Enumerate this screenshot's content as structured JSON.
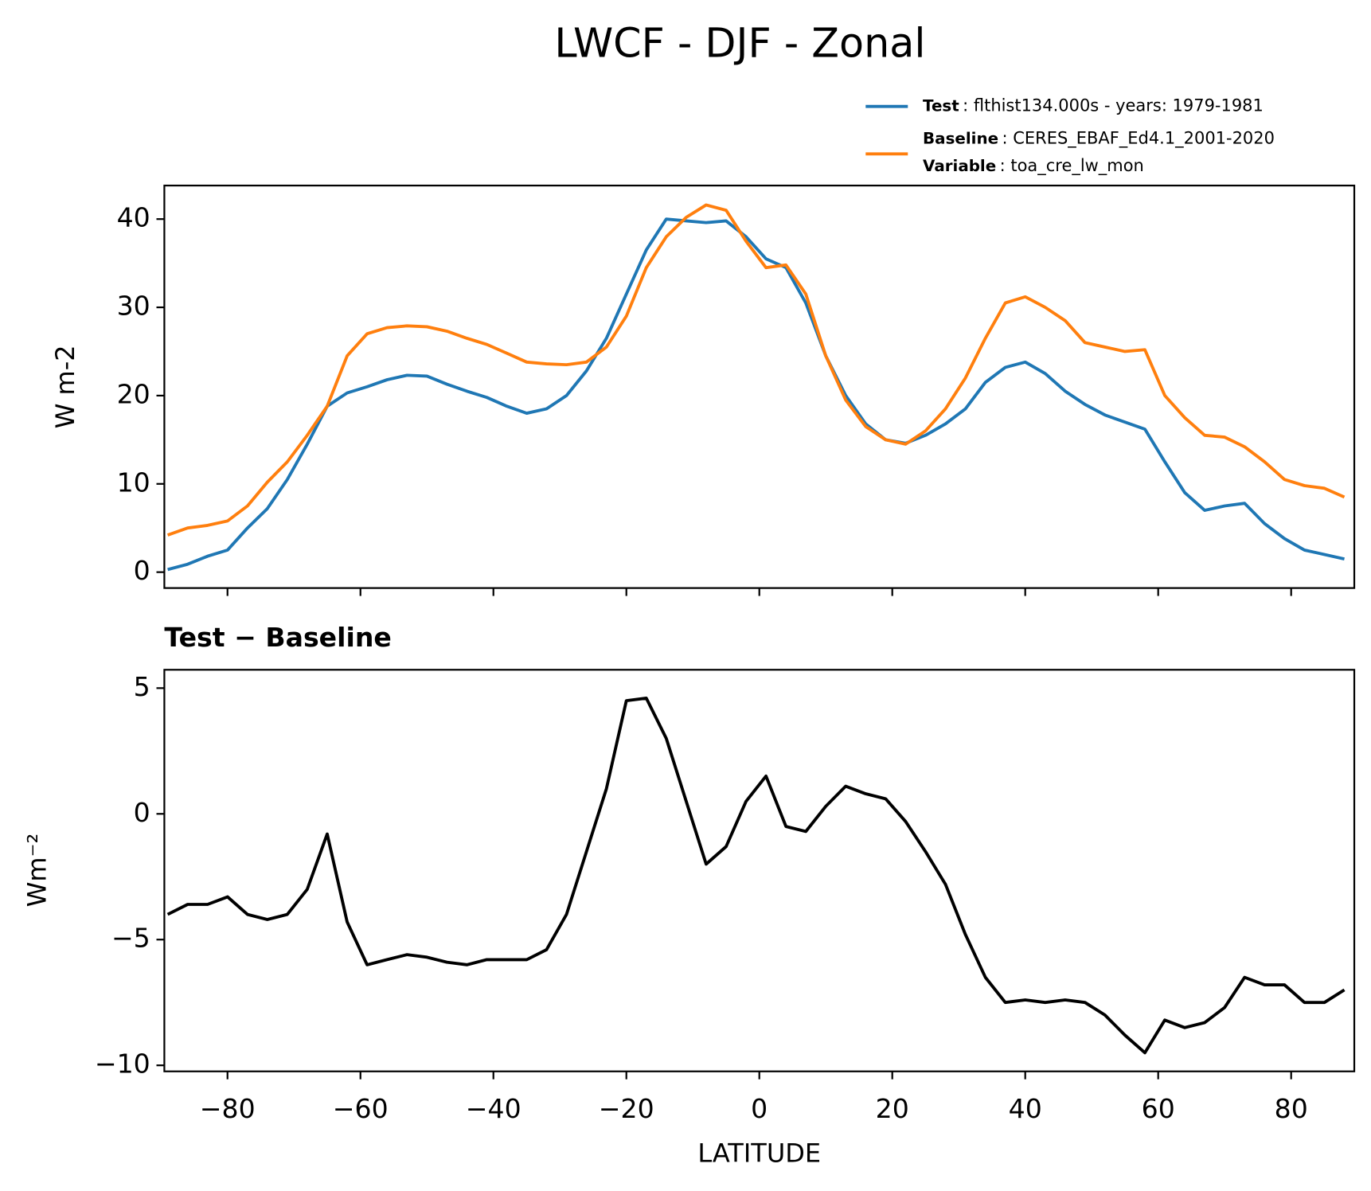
{
  "chart_data": [
    {
      "type": "line",
      "title": "LWCF - DJF - Zonal",
      "y_label": "W m-2",
      "x": [
        -89,
        -86,
        -83,
        -80,
        -77,
        -74,
        -71,
        -68,
        -65,
        -62,
        -59,
        -56,
        -53,
        -50,
        -47,
        -44,
        -41,
        -38,
        -35,
        -32,
        -29,
        -26,
        -23,
        -20,
        -17,
        -14,
        -11,
        -8,
        -5,
        -2,
        1,
        4,
        7,
        10,
        13,
        16,
        19,
        22,
        25,
        28,
        31,
        34,
        37,
        40,
        43,
        46,
        49,
        52,
        55,
        58,
        61,
        64,
        67,
        70,
        73,
        76,
        79,
        82,
        85,
        88
      ],
      "series": [
        {
          "name": "Test",
          "label": ": flthist134.000s - years: 1979-1981",
          "color": "#1f77b4",
          "values": [
            0.3,
            0.9,
            1.8,
            2.5,
            5.0,
            7.2,
            10.5,
            14.5,
            18.8,
            20.3,
            21.0,
            21.8,
            22.3,
            22.2,
            21.3,
            20.5,
            19.8,
            18.8,
            18.0,
            18.5,
            20.0,
            22.8,
            26.5,
            31.5,
            36.5,
            40.0,
            39.8,
            39.6,
            39.8,
            38.0,
            35.5,
            34.5,
            30.5,
            24.5,
            20.0,
            16.8,
            15.0,
            14.6,
            15.5,
            16.8,
            18.5,
            21.5,
            23.2,
            23.8,
            22.5,
            20.5,
            19.0,
            17.8,
            17.0,
            16.2,
            12.5,
            9.0,
            7.0,
            7.5,
            7.8,
            5.5,
            3.8,
            2.5,
            2.0,
            1.5
          ]
        },
        {
          "name": "Baseline",
          "label": ": CERES_EBAF_Ed4.1_2001-2020",
          "color": "#ff7f0e",
          "values": [
            4.2,
            5.0,
            5.3,
            5.8,
            7.5,
            10.2,
            12.5,
            15.5,
            18.8,
            24.5,
            27.0,
            27.7,
            27.9,
            27.8,
            27.3,
            26.5,
            25.8,
            24.8,
            23.8,
            23.6,
            23.5,
            23.8,
            25.5,
            29.0,
            34.5,
            38.0,
            40.2,
            41.6,
            41.0,
            37.5,
            34.5,
            34.8,
            31.5,
            24.5,
            19.5,
            16.5,
            15.0,
            14.5,
            16.0,
            18.5,
            22.0,
            26.5,
            30.5,
            31.2,
            30.0,
            28.5,
            26.0,
            25.5,
            25.0,
            25.2,
            20.0,
            17.5,
            15.5,
            15.3,
            14.2,
            12.5,
            10.5,
            9.8,
            9.5,
            8.5
          ]
        }
      ],
      "variable_name": "Variable",
      "variable_label": ": toa_cre_lw_mon",
      "xlim": [
        -89.5,
        89.5
      ],
      "xticks": [
        -80,
        -60,
        -40,
        -20,
        0,
        20,
        40,
        60,
        80
      ],
      "ylim": [
        -1.8,
        43.8
      ],
      "yticks": [
        0,
        10,
        20,
        30,
        40
      ]
    },
    {
      "type": "line",
      "title": "Test − Baseline",
      "x_label": "LATITUDE",
      "y_label": "Wm⁻²",
      "x": [
        -89,
        -86,
        -83,
        -80,
        -77,
        -74,
        -71,
        -68,
        -65,
        -62,
        -59,
        -56,
        -53,
        -50,
        -47,
        -44,
        -41,
        -38,
        -35,
        -32,
        -29,
        -26,
        -23,
        -20,
        -17,
        -14,
        -11,
        -8,
        -5,
        -2,
        1,
        4,
        7,
        10,
        13,
        16,
        19,
        22,
        25,
        28,
        31,
        34,
        37,
        40,
        43,
        46,
        49,
        52,
        55,
        58,
        61,
        64,
        67,
        70,
        73,
        76,
        79,
        82,
        85,
        88
      ],
      "color": "#000000",
      "values": [
        -4.0,
        -3.6,
        -3.6,
        -3.3,
        -4.0,
        -4.2,
        -4.0,
        -3.0,
        -0.8,
        -4.3,
        -6.0,
        -5.8,
        -5.6,
        -5.7,
        -5.9,
        -6.0,
        -5.8,
        -5.8,
        -5.8,
        -5.4,
        -4.0,
        -1.5,
        1.0,
        4.5,
        4.6,
        3.0,
        0.5,
        -2.0,
        -1.3,
        0.5,
        1.5,
        -0.5,
        -0.7,
        0.3,
        1.1,
        0.8,
        0.6,
        -0.3,
        -1.5,
        -2.8,
        -4.8,
        -6.5,
        -7.5,
        -7.4,
        -7.5,
        -7.4,
        -7.5,
        -8.0,
        -8.8,
        -9.5,
        -8.2,
        -8.5,
        -8.3,
        -7.7,
        -6.5,
        -6.8,
        -6.8,
        -7.5,
        -7.5,
        -7.0
      ],
      "xlim": [
        -89.5,
        89.5
      ],
      "xticks": [
        {
          "value": -80,
          "label": "−80"
        },
        {
          "value": -60,
          "label": "−60"
        },
        {
          "value": -40,
          "label": "−40"
        },
        {
          "value": -20,
          "label": "−20"
        },
        0,
        20,
        40,
        60,
        80
      ],
      "ylim": [
        -10.24,
        5.73
      ],
      "yticks": [
        {
          "value": -10,
          "label": "−10"
        },
        {
          "value": -5,
          "label": "−5"
        },
        0,
        5
      ]
    }
  ]
}
